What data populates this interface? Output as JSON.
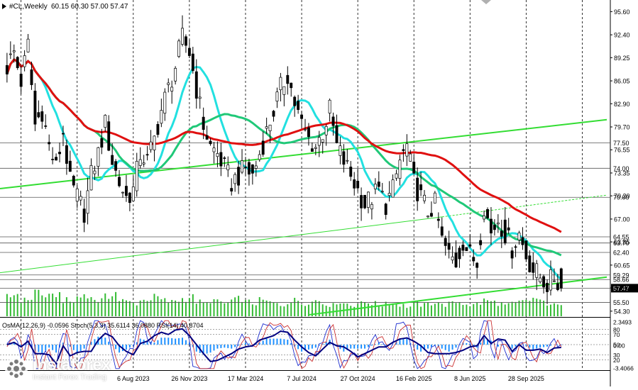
{
  "header": {
    "symbol": "#CL,Weekly",
    "ohlc": "60.15 60.30 57.00 57.47"
  },
  "indicator_header": {
    "text": "OsMA(12,26,9) -0.0596  Stoch(5,3,3) 35.6114 36.0880  RSI(14) 40.8704"
  },
  "watermark": {
    "title": "instaforex",
    "subtitle": "Instant Forex Trading"
  },
  "colors": {
    "candle": "#000000",
    "ma_fast": "#22e0e0",
    "ma_mid": "#20c878",
    "ma_slow": "#e01010",
    "trendline": "#33dd33",
    "volume": "#33bb33",
    "hline": "#555555",
    "osma": "#1e90ff",
    "stoch_main": "#1f2fd0",
    "stoch_signal": "#cc3333",
    "rsi": "#000080"
  },
  "chart_data": [
    {
      "type": "candlestick",
      "title": "#CL,Weekly",
      "price_scale_labels": [
        "95.60",
        "92.40",
        "89.25",
        "86.05",
        "82.90",
        "79.70",
        "76.55",
        "73.35",
        "70.20",
        "67.00",
        "63.85",
        "60.65",
        "57.50",
        "54.30"
      ],
      "ylim": [
        53.5,
        97.2
      ],
      "price_levels": [
        77.5,
        74.0,
        70.0,
        64.55,
        63.7,
        62.4,
        59.29,
        58.66,
        57.47,
        55.5
      ],
      "price_level_labels": [
        "77.50",
        "74.00",
        "70.00",
        "64.55",
        "63.70",
        "62.40",
        "59.29",
        "58.66",
        "57.47",
        "55.50"
      ],
      "current_price": "57.47",
      "x_tick_labels": [
        "6 Aug 2023",
        "26 Nov 2023",
        "17 Mar 2024",
        "7 Jul 2024",
        "27 Oct 2024",
        "16 Feb 2025",
        "8 Jun 2025",
        "28 Sep 2025"
      ],
      "close_path": [
        [
          0,
          88
        ],
        [
          2,
          90
        ],
        [
          4,
          86
        ],
        [
          6,
          91
        ],
        [
          8,
          80
        ],
        [
          10,
          82
        ],
        [
          12,
          77
        ],
        [
          14,
          74
        ],
        [
          16,
          79
        ],
        [
          18,
          72
        ],
        [
          20,
          70
        ],
        [
          22,
          68
        ],
        [
          24,
          73
        ],
        [
          26,
          76
        ],
        [
          28,
          80
        ],
        [
          30,
          75
        ],
        [
          32,
          72
        ],
        [
          34,
          70
        ],
        [
          36,
          71
        ],
        [
          38,
          76
        ],
        [
          40,
          75
        ],
        [
          42,
          78
        ],
        [
          44,
          82
        ],
        [
          46,
          85
        ],
        [
          48,
          88
        ],
        [
          50,
          92
        ],
        [
          52,
          90
        ],
        [
          54,
          85
        ],
        [
          56,
          80
        ],
        [
          58,
          77
        ],
        [
          60,
          76
        ],
        [
          62,
          74
        ],
        [
          64,
          72
        ],
        [
          66,
          73
        ],
        [
          68,
          74
        ],
        [
          70,
          73
        ],
        [
          72,
          76
        ],
        [
          74,
          79
        ],
        [
          76,
          82
        ],
        [
          78,
          85
        ],
        [
          80,
          87
        ],
        [
          82,
          83
        ],
        [
          84,
          80
        ],
        [
          86,
          78
        ],
        [
          88,
          77
        ],
        [
          90,
          79
        ],
        [
          92,
          82
        ],
        [
          94,
          77
        ],
        [
          96,
          75
        ],
        [
          98,
          73
        ],
        [
          100,
          71
        ],
        [
          102,
          69
        ],
        [
          104,
          70
        ],
        [
          106,
          71
        ],
        [
          108,
          69
        ],
        [
          110,
          71
        ],
        [
          112,
          75
        ],
        [
          114,
          77
        ],
        [
          116,
          72
        ],
        [
          118,
          70
        ],
        [
          120,
          68
        ],
        [
          122,
          69
        ],
        [
          124,
          64
        ],
        [
          126,
          62
        ],
        [
          128,
          61
        ],
        [
          130,
          64
        ],
        [
          132,
          62
        ],
        [
          134,
          61
        ],
        [
          136,
          69
        ],
        [
          138,
          65
        ],
        [
          140,
          67
        ],
        [
          142,
          65
        ],
        [
          144,
          63
        ],
        [
          146,
          65
        ],
        [
          148,
          62
        ],
        [
          150,
          60
        ],
        [
          152,
          59
        ],
        [
          154,
          58
        ],
        [
          156,
          59
        ],
        [
          158,
          57.5
        ]
      ],
      "volume_relative": [
        0.6,
        0.7,
        0.5,
        0.55,
        0.8,
        0.65,
        0.6,
        0.7,
        0.5,
        0.45,
        0.6,
        0.7,
        0.55,
        0.5,
        0.6,
        0.75,
        0.5,
        0.45,
        0.4,
        0.5,
        0.55,
        0.6,
        0.5,
        0.45,
        0.5,
        0.55,
        0.6,
        0.45,
        0.4,
        0.5,
        0.45,
        0.4,
        0.5,
        0.55,
        0.45,
        0.4,
        0.5,
        0.45,
        0.4,
        0.35,
        0.45,
        0.5,
        0.4,
        0.45,
        0.5,
        0.4,
        0.35,
        0.45,
        0.4,
        0.35,
        0.4,
        0.45,
        0.4,
        0.35,
        0.45,
        0.4,
        0.35,
        0.3,
        0.4,
        0.35,
        0.4,
        0.45,
        0.35,
        0.4,
        0.45,
        0.4,
        0.35,
        0.4,
        0.5,
        0.45,
        0.4,
        0.35,
        0.4,
        0.45,
        0.5,
        0.55,
        0.45,
        0.4,
        0.35,
        0.3
      ]
    },
    {
      "type": "line",
      "title": "OsMA(12,26,9) -0.0596  Stoch(5,3,3) 35.6114 36.0880  RSI(14) 40.8704",
      "scale_labels": [
        "2.3493",
        "80",
        "70",
        "50",
        "0.00",
        "30",
        "20",
        "-3.4066"
      ],
      "levels": [
        80,
        70,
        50,
        30,
        20
      ]
    }
  ]
}
